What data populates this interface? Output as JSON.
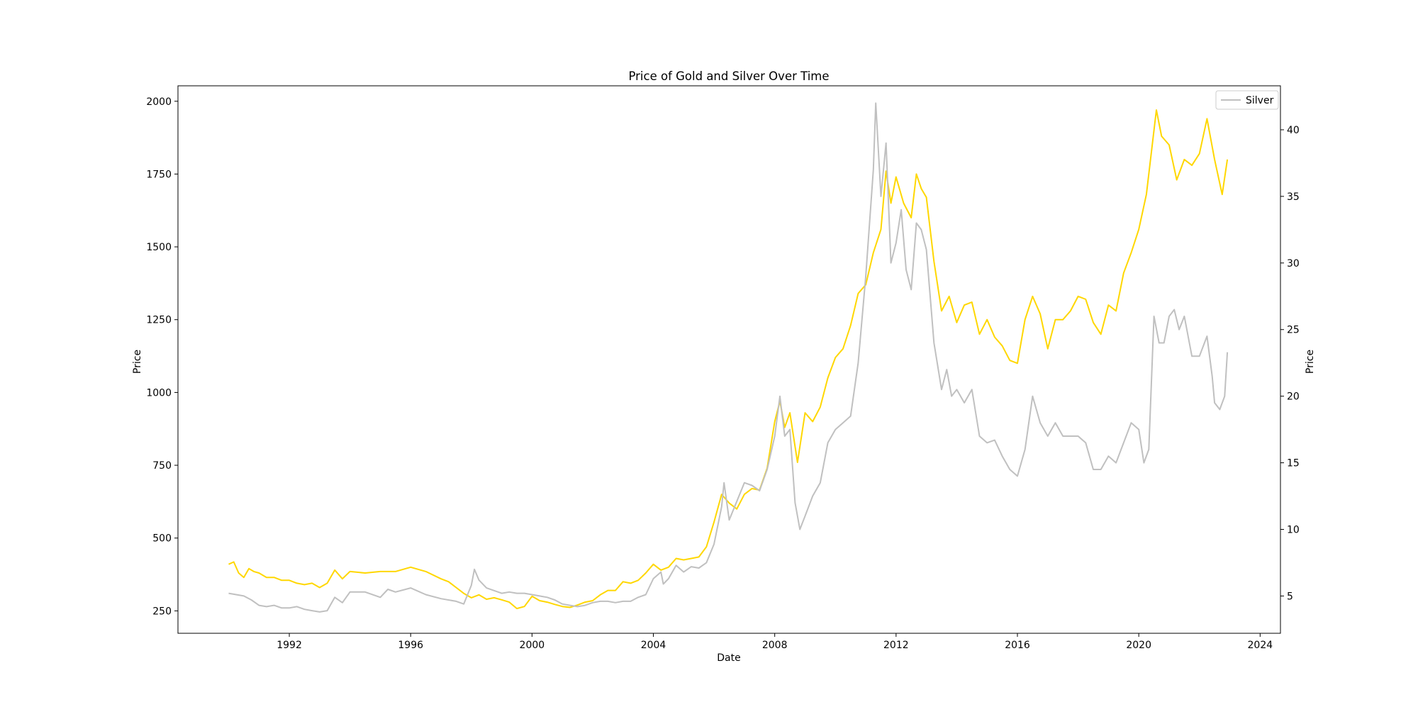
{
  "chart_data": {
    "type": "line",
    "title": "Price of Gold and Silver Over Time",
    "xlabel": "Date",
    "ylabel_left": "Price",
    "ylabel_right": "Price",
    "x_ticks": [
      "1992",
      "1996",
      "2000",
      "2004",
      "2008",
      "2012",
      "2016",
      "2020",
      "2024"
    ],
    "xlim": [
      1988.33,
      2024.67
    ],
    "y_left_ticks": [
      "250",
      "500",
      "750",
      "1000",
      "1250",
      "1500",
      "1750",
      "2000"
    ],
    "y_left_lim": [
      173,
      2053
    ],
    "y_right_ticks": [
      "5",
      "10",
      "15",
      "20",
      "25",
      "30",
      "35",
      "40"
    ],
    "y_right_lim": [
      2.2,
      43.3
    ],
    "grid": false,
    "legend": {
      "placement": "top-right",
      "entries": [
        "Silver"
      ]
    },
    "colors": {
      "gold": "#FFD700",
      "silver": "#C0C0C0"
    },
    "series": [
      {
        "axis": "left",
        "color": "#FFD700",
        "points": [
          [
            1990.0,
            410
          ],
          [
            1990.17,
            418
          ],
          [
            1990.33,
            380
          ],
          [
            1990.5,
            365
          ],
          [
            1990.67,
            395
          ],
          [
            1990.83,
            385
          ],
          [
            1991.0,
            380
          ],
          [
            1991.25,
            365
          ],
          [
            1991.5,
            365
          ],
          [
            1991.75,
            355
          ],
          [
            1992.0,
            355
          ],
          [
            1992.25,
            345
          ],
          [
            1992.5,
            340
          ],
          [
            1992.75,
            345
          ],
          [
            1993.0,
            330
          ],
          [
            1993.25,
            345
          ],
          [
            1993.5,
            390
          ],
          [
            1993.75,
            360
          ],
          [
            1994.0,
            385
          ],
          [
            1994.5,
            380
          ],
          [
            1995.0,
            385
          ],
          [
            1995.5,
            385
          ],
          [
            1996.0,
            400
          ],
          [
            1996.5,
            385
          ],
          [
            1997.0,
            360
          ],
          [
            1997.25,
            350
          ],
          [
            1997.5,
            330
          ],
          [
            1997.75,
            310
          ],
          [
            1998.0,
            295
          ],
          [
            1998.25,
            305
          ],
          [
            1998.5,
            290
          ],
          [
            1998.75,
            295
          ],
          [
            1999.0,
            288
          ],
          [
            1999.25,
            280
          ],
          [
            1999.5,
            258
          ],
          [
            1999.75,
            265
          ],
          [
            2000.0,
            300
          ],
          [
            2000.25,
            285
          ],
          [
            2000.5,
            280
          ],
          [
            2000.75,
            272
          ],
          [
            2001.0,
            265
          ],
          [
            2001.25,
            262
          ],
          [
            2001.5,
            270
          ],
          [
            2001.75,
            280
          ],
          [
            2002.0,
            285
          ],
          [
            2002.25,
            305
          ],
          [
            2002.5,
            320
          ],
          [
            2002.75,
            320
          ],
          [
            2003.0,
            350
          ],
          [
            2003.25,
            345
          ],
          [
            2003.5,
            355
          ],
          [
            2003.75,
            380
          ],
          [
            2004.0,
            410
          ],
          [
            2004.25,
            390
          ],
          [
            2004.5,
            400
          ],
          [
            2004.75,
            430
          ],
          [
            2005.0,
            425
          ],
          [
            2005.25,
            430
          ],
          [
            2005.5,
            435
          ],
          [
            2005.75,
            470
          ],
          [
            2006.0,
            555
          ],
          [
            2006.25,
            650
          ],
          [
            2006.5,
            620
          ],
          [
            2006.75,
            600
          ],
          [
            2007.0,
            650
          ],
          [
            2007.25,
            670
          ],
          [
            2007.5,
            665
          ],
          [
            2007.75,
            740
          ],
          [
            2008.0,
            900
          ],
          [
            2008.17,
            970
          ],
          [
            2008.33,
            880
          ],
          [
            2008.5,
            930
          ],
          [
            2008.75,
            760
          ],
          [
            2009.0,
            930
          ],
          [
            2009.25,
            900
          ],
          [
            2009.5,
            950
          ],
          [
            2009.75,
            1050
          ],
          [
            2010.0,
            1120
          ],
          [
            2010.25,
            1150
          ],
          [
            2010.5,
            1230
          ],
          [
            2010.75,
            1340
          ],
          [
            2011.0,
            1370
          ],
          [
            2011.25,
            1480
          ],
          [
            2011.5,
            1560
          ],
          [
            2011.67,
            1760
          ],
          [
            2011.83,
            1650
          ],
          [
            2012.0,
            1740
          ],
          [
            2012.25,
            1650
          ],
          [
            2012.5,
            1600
          ],
          [
            2012.67,
            1750
          ],
          [
            2012.83,
            1700
          ],
          [
            2013.0,
            1670
          ],
          [
            2013.25,
            1450
          ],
          [
            2013.5,
            1280
          ],
          [
            2013.75,
            1330
          ],
          [
            2014.0,
            1240
          ],
          [
            2014.25,
            1300
          ],
          [
            2014.5,
            1310
          ],
          [
            2014.75,
            1200
          ],
          [
            2015.0,
            1250
          ],
          [
            2015.25,
            1190
          ],
          [
            2015.5,
            1160
          ],
          [
            2015.75,
            1110
          ],
          [
            2016.0,
            1100
          ],
          [
            2016.25,
            1250
          ],
          [
            2016.5,
            1330
          ],
          [
            2016.75,
            1270
          ],
          [
            2017.0,
            1150
          ],
          [
            2017.25,
            1250
          ],
          [
            2017.5,
            1250
          ],
          [
            2017.75,
            1280
          ],
          [
            2018.0,
            1330
          ],
          [
            2018.25,
            1320
          ],
          [
            2018.5,
            1240
          ],
          [
            2018.75,
            1200
          ],
          [
            2019.0,
            1300
          ],
          [
            2019.25,
            1280
          ],
          [
            2019.5,
            1410
          ],
          [
            2019.75,
            1480
          ],
          [
            2020.0,
            1560
          ],
          [
            2020.25,
            1680
          ],
          [
            2020.58,
            1970
          ],
          [
            2020.75,
            1880
          ],
          [
            2021.0,
            1850
          ],
          [
            2021.25,
            1730
          ],
          [
            2021.5,
            1800
          ],
          [
            2021.75,
            1780
          ],
          [
            2022.0,
            1820
          ],
          [
            2022.25,
            1940
          ],
          [
            2022.5,
            1800
          ],
          [
            2022.75,
            1680
          ],
          [
            2022.92,
            1800
          ]
        ]
      },
      {
        "name": "Silver",
        "axis": "right",
        "color": "#C0C0C0",
        "points": [
          [
            1990.0,
            5.2
          ],
          [
            1990.25,
            5.1
          ],
          [
            1990.5,
            5.0
          ],
          [
            1990.75,
            4.7
          ],
          [
            1991.0,
            4.3
          ],
          [
            1991.25,
            4.2
          ],
          [
            1991.5,
            4.3
          ],
          [
            1991.75,
            4.1
          ],
          [
            1992.0,
            4.1
          ],
          [
            1992.25,
            4.2
          ],
          [
            1992.5,
            4.0
          ],
          [
            1992.75,
            3.9
          ],
          [
            1993.0,
            3.8
          ],
          [
            1993.25,
            3.9
          ],
          [
            1993.5,
            4.9
          ],
          [
            1993.75,
            4.5
          ],
          [
            1994.0,
            5.3
          ],
          [
            1994.5,
            5.3
          ],
          [
            1995.0,
            4.9
          ],
          [
            1995.25,
            5.5
          ],
          [
            1995.5,
            5.3
          ],
          [
            1996.0,
            5.6
          ],
          [
            1996.5,
            5.1
          ],
          [
            1997.0,
            4.8
          ],
          [
            1997.5,
            4.6
          ],
          [
            1997.75,
            4.4
          ],
          [
            1998.0,
            5.8
          ],
          [
            1998.1,
            7.0
          ],
          [
            1998.25,
            6.2
          ],
          [
            1998.5,
            5.6
          ],
          [
            1999.0,
            5.2
          ],
          [
            1999.25,
            5.3
          ],
          [
            1999.5,
            5.2
          ],
          [
            1999.75,
            5.2
          ],
          [
            2000.0,
            5.1
          ],
          [
            2000.25,
            5.0
          ],
          [
            2000.5,
            4.9
          ],
          [
            2000.75,
            4.7
          ],
          [
            2001.0,
            4.4
          ],
          [
            2001.25,
            4.3
          ],
          [
            2001.5,
            4.2
          ],
          [
            2001.75,
            4.3
          ],
          [
            2002.0,
            4.5
          ],
          [
            2002.25,
            4.6
          ],
          [
            2002.5,
            4.6
          ],
          [
            2002.75,
            4.5
          ],
          [
            2003.0,
            4.6
          ],
          [
            2003.25,
            4.6
          ],
          [
            2003.5,
            4.9
          ],
          [
            2003.75,
            5.1
          ],
          [
            2004.0,
            6.3
          ],
          [
            2004.25,
            6.8
          ],
          [
            2004.33,
            5.9
          ],
          [
            2004.5,
            6.3
          ],
          [
            2004.75,
            7.3
          ],
          [
            2005.0,
            6.8
          ],
          [
            2005.25,
            7.2
          ],
          [
            2005.5,
            7.1
          ],
          [
            2005.75,
            7.5
          ],
          [
            2006.0,
            8.9
          ],
          [
            2006.25,
            11.7
          ],
          [
            2006.33,
            13.5
          ],
          [
            2006.5,
            10.7
          ],
          [
            2006.75,
            12.1
          ],
          [
            2007.0,
            13.5
          ],
          [
            2007.25,
            13.3
          ],
          [
            2007.5,
            12.9
          ],
          [
            2007.75,
            14.5
          ],
          [
            2008.0,
            17.0
          ],
          [
            2008.17,
            20.0
          ],
          [
            2008.33,
            17.0
          ],
          [
            2008.5,
            17.5
          ],
          [
            2008.67,
            12.0
          ],
          [
            2008.83,
            10.0
          ],
          [
            2009.0,
            11.0
          ],
          [
            2009.25,
            12.5
          ],
          [
            2009.5,
            13.5
          ],
          [
            2009.75,
            16.5
          ],
          [
            2010.0,
            17.5
          ],
          [
            2010.25,
            18.0
          ],
          [
            2010.5,
            18.5
          ],
          [
            2010.75,
            22.5
          ],
          [
            2011.0,
            29.0
          ],
          [
            2011.25,
            37.0
          ],
          [
            2011.33,
            42.0
          ],
          [
            2011.5,
            35.0
          ],
          [
            2011.67,
            39.0
          ],
          [
            2011.83,
            30.0
          ],
          [
            2012.0,
            31.5
          ],
          [
            2012.17,
            34.0
          ],
          [
            2012.33,
            29.5
          ],
          [
            2012.5,
            28.0
          ],
          [
            2012.67,
            33.0
          ],
          [
            2012.83,
            32.5
          ],
          [
            2013.0,
            31.0
          ],
          [
            2013.25,
            24.0
          ],
          [
            2013.5,
            20.5
          ],
          [
            2013.67,
            22.0
          ],
          [
            2013.83,
            20.0
          ],
          [
            2014.0,
            20.5
          ],
          [
            2014.25,
            19.5
          ],
          [
            2014.5,
            20.5
          ],
          [
            2014.75,
            17.0
          ],
          [
            2015.0,
            16.5
          ],
          [
            2015.25,
            16.7
          ],
          [
            2015.5,
            15.5
          ],
          [
            2015.75,
            14.5
          ],
          [
            2016.0,
            14.0
          ],
          [
            2016.25,
            16.0
          ],
          [
            2016.5,
            20.0
          ],
          [
            2016.75,
            18.0
          ],
          [
            2017.0,
            17.0
          ],
          [
            2017.25,
            18.0
          ],
          [
            2017.5,
            17.0
          ],
          [
            2017.75,
            17.0
          ],
          [
            2018.0,
            17.0
          ],
          [
            2018.25,
            16.5
          ],
          [
            2018.5,
            14.5
          ],
          [
            2018.75,
            14.5
          ],
          [
            2019.0,
            15.5
          ],
          [
            2019.25,
            15.0
          ],
          [
            2019.5,
            16.5
          ],
          [
            2019.75,
            18.0
          ],
          [
            2020.0,
            17.5
          ],
          [
            2020.17,
            15.0
          ],
          [
            2020.33,
            16.0
          ],
          [
            2020.5,
            26.0
          ],
          [
            2020.67,
            24.0
          ],
          [
            2020.83,
            24.0
          ],
          [
            2021.0,
            26.0
          ],
          [
            2021.17,
            26.5
          ],
          [
            2021.33,
            25.0
          ],
          [
            2021.5,
            26.0
          ],
          [
            2021.75,
            23.0
          ],
          [
            2022.0,
            23.0
          ],
          [
            2022.25,
            24.5
          ],
          [
            2022.42,
            21.5
          ],
          [
            2022.5,
            19.5
          ],
          [
            2022.67,
            19.0
          ],
          [
            2022.83,
            20.0
          ],
          [
            2022.92,
            23.3
          ]
        ]
      }
    ]
  }
}
